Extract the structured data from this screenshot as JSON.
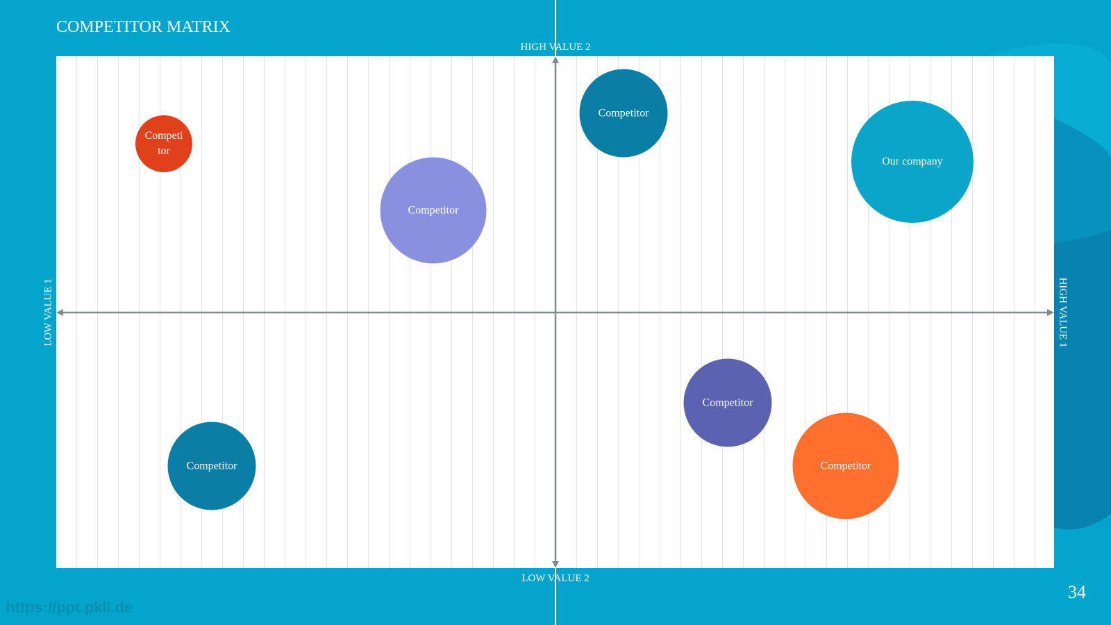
{
  "title": "COMPETITOR MATRIX",
  "axes": {
    "top": "HIGH VALUE 2",
    "bottom": "LOW VALUE 2",
    "left": "LOW VALUE 1",
    "right": "HIGH VALUE 1"
  },
  "bubbles": [
    "Competitor",
    "Competitor",
    "Competitor",
    "Our company",
    "Competitor",
    "Competitor",
    "Competitor"
  ],
  "page_number": "34",
  "watermark": "https://ppt.pkll.de"
}
